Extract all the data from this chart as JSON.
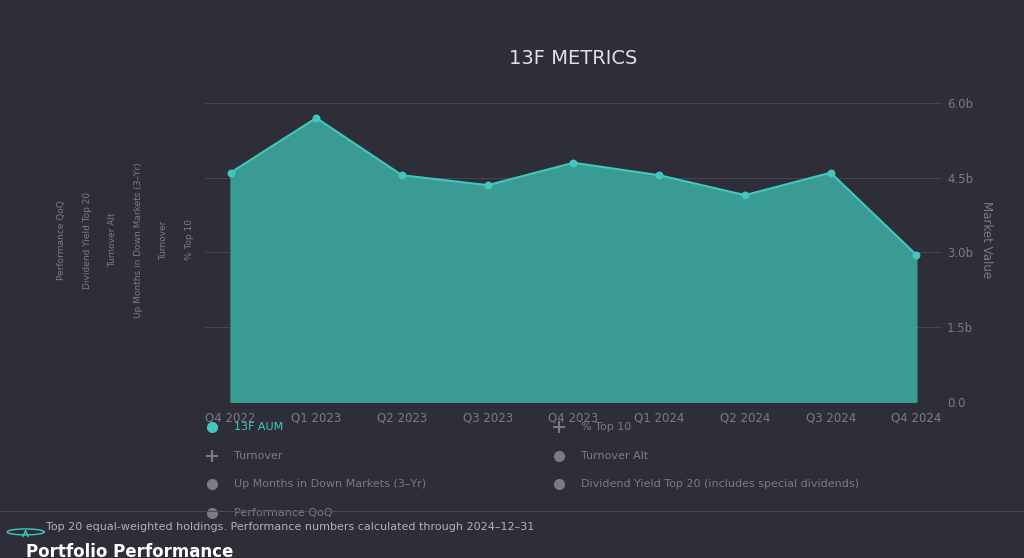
{
  "title": "13F METRICS",
  "quarters": [
    "Q4 2022",
    "Q1 2023",
    "Q2 2023",
    "Q3 2023",
    "Q4 2023",
    "Q1 2024",
    "Q2 2024",
    "Q3 2024",
    "Q4 2024"
  ],
  "aum_values": [
    4.6,
    5.7,
    4.55,
    4.35,
    4.8,
    4.55,
    4.15,
    4.6,
    2.95
  ],
  "area_color": "#3a9a94",
  "area_alpha": 1.0,
  "line_color": "#40c8be",
  "bg_color": "#2e2e38",
  "plot_bg_color": "#2e2e38",
  "grid_color": "#4a4a58",
  "text_color": "#b0b0c0",
  "title_color": "#e0e0e8",
  "axis_label_color": "#7a7a8a",
  "ylabel_right": "Market Value",
  "left_labels": [
    "% Top 10",
    "Turnover",
    "Up Months in Down Markets (3–Yr)",
    "Turnover Alt",
    "Dividend Yield Top 20",
    "Performance QoQ"
  ],
  "yticks": [
    0.0,
    1.5,
    3.0,
    4.5,
    6.0
  ],
  "ytick_labels": [
    "0.0",
    "1.5b",
    "3.0b",
    "4.5b",
    "6.0b"
  ],
  "ylim": [
    0,
    6.5
  ],
  "legend_left": [
    {
      "label": "13F AUM",
      "color": "#40c8be",
      "marker": "o"
    },
    {
      "label": "Turnover",
      "color": "#7a7a8a",
      "marker": "P"
    },
    {
      "label": "Up Months in Down Markets (3–Yr)",
      "color": "#7a7a8a",
      "marker": "o"
    },
    {
      "label": "Performance QoQ",
      "color": "#7a7a8a",
      "marker": "o"
    }
  ],
  "legend_right": [
    {
      "label": "% Top 10",
      "color": "#7a7a8a",
      "marker": "P"
    },
    {
      "label": "Turnover Alt",
      "color": "#7a7a8a",
      "marker": "o"
    },
    {
      "label": "Dividend Yield Top 20 (includes special dividends)",
      "color": "#7a7a8a",
      "marker": "o"
    }
  ],
  "footer_bg_color": "#263040",
  "footer_text": "Top 20 equal-weighted holdings. Performance numbers calculated through 2024–12–31",
  "footer_title": "Portfolio Performance",
  "footer_icon_color": "#40c8be"
}
